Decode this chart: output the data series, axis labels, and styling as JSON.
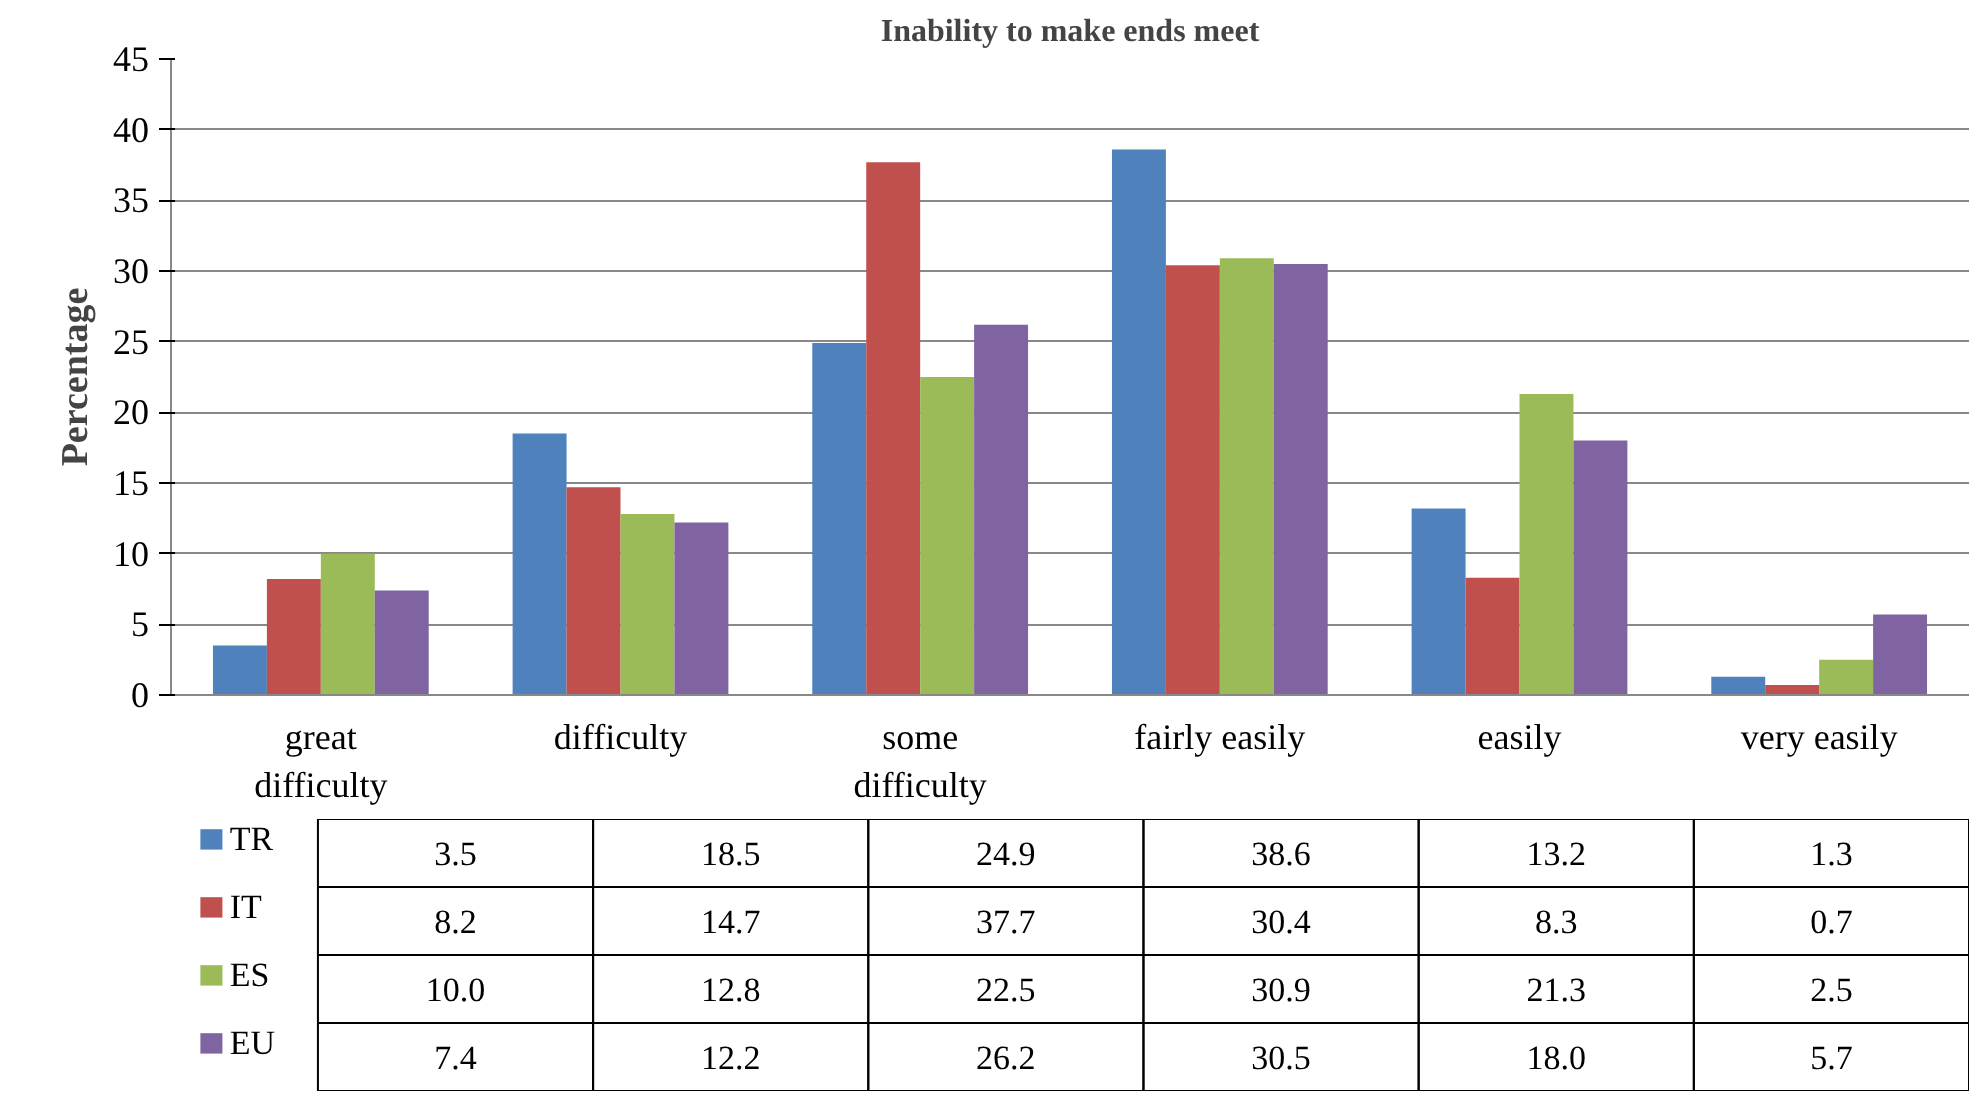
{
  "chart_data": {
    "type": "bar",
    "title": "Inability to make ends meet",
    "ylabel": "Percentage",
    "categories": [
      "great difficulty",
      "difficulty",
      "some difficulty",
      "fairly easily",
      "easily",
      "very easily"
    ],
    "series": [
      {
        "name": "TR",
        "color": "#4f81bd",
        "values": [
          3.5,
          18.5,
          24.9,
          38.6,
          13.2,
          1.3
        ],
        "value_labels": [
          "3.5",
          "18.5",
          "24.9",
          "38.6",
          "13.2",
          "1.3"
        ]
      },
      {
        "name": "IT",
        "color": "#c0504d",
        "values": [
          8.2,
          14.7,
          37.7,
          30.4,
          8.3,
          0.7
        ],
        "value_labels": [
          "8.2",
          "14.7",
          "37.7",
          "30.4",
          "8.3",
          "0.7"
        ]
      },
      {
        "name": "ES",
        "color": "#9bbb59",
        "values": [
          10.0,
          12.8,
          22.5,
          30.9,
          21.3,
          2.5
        ],
        "value_labels": [
          "10.0",
          "12.8",
          "22.5",
          "30.9",
          "21.3",
          "2.5"
        ]
      },
      {
        "name": "EU",
        "color": "#8064a2",
        "values": [
          7.4,
          12.2,
          26.2,
          30.5,
          18.0,
          5.7
        ],
        "value_labels": [
          "7.4",
          "12.2",
          "26.2",
          "30.5",
          "18.0",
          "5.7"
        ]
      }
    ],
    "ylim": [
      0,
      45
    ],
    "yticks": [
      0,
      5,
      10,
      15,
      20,
      25,
      30,
      35,
      40,
      45
    ],
    "grid": "y",
    "legend": "left"
  }
}
